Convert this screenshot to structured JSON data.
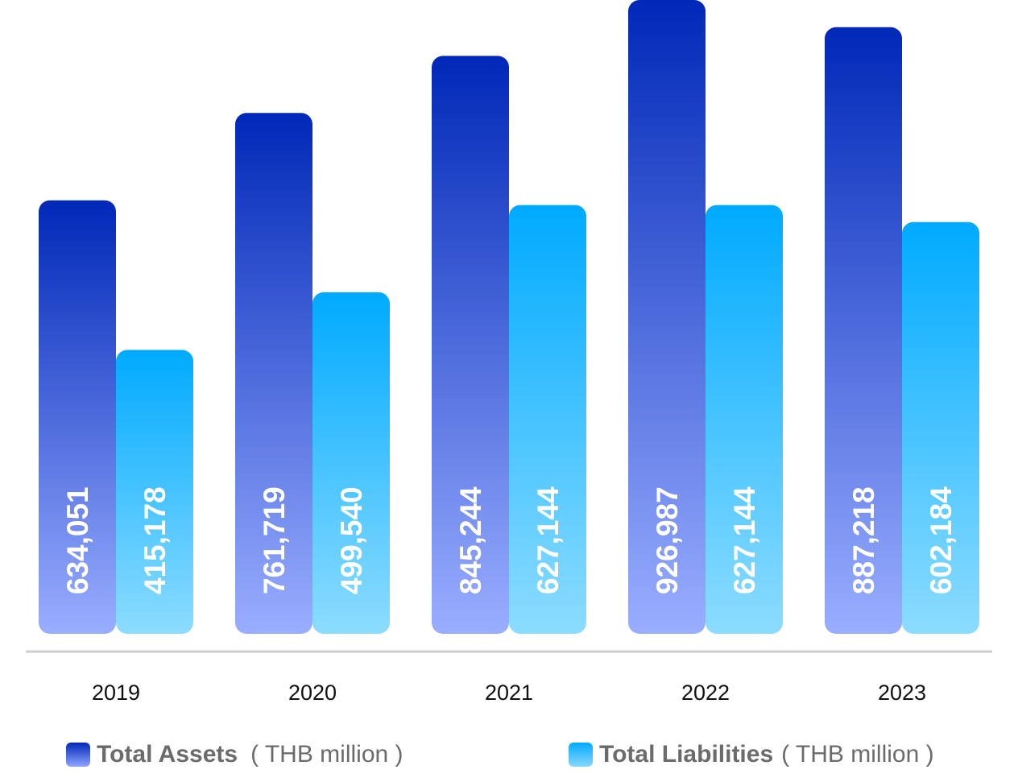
{
  "chart_data": {
    "type": "bar",
    "categories": [
      "2019",
      "2020",
      "2021",
      "2022",
      "2023"
    ],
    "series": [
      {
        "name": "Total Assets",
        "unit": "( THB million )",
        "values": [
          634051,
          761719,
          845244,
          926987,
          887218
        ],
        "labels": [
          "634,051",
          "761,719",
          "845,244",
          "926,987",
          "887,218"
        ],
        "color_top": "#0028b8",
        "color_bottom": "#9aaeff"
      },
      {
        "name": "Total Liabilities",
        "unit": "( THB million )",
        "values": [
          415178,
          499540,
          627144,
          627144,
          602184
        ],
        "labels": [
          "415,178",
          "499,540",
          "627,144",
          "627,144",
          "602,184"
        ],
        "color_top": "#00aaff",
        "color_bottom": "#8cdcff"
      }
    ],
    "legend_position": "bottom",
    "grid": false,
    "axis_line_color": "#cccccc"
  }
}
